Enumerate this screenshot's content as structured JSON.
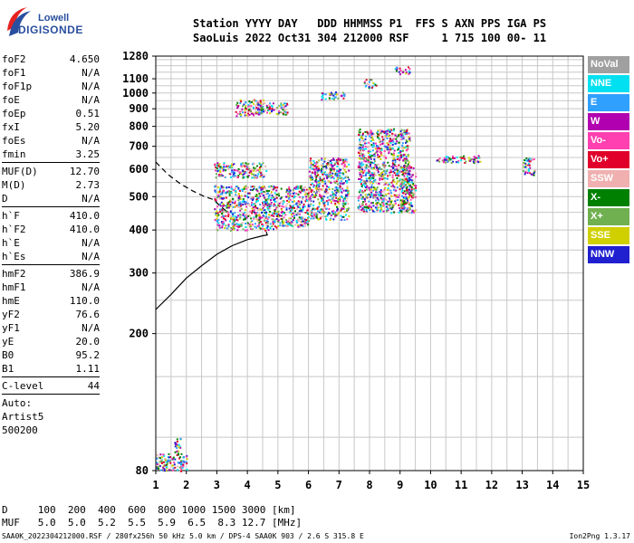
{
  "logo": {
    "line1": "Lowell",
    "line2": "DIGISONDE"
  },
  "header": {
    "row1": "Station YYYY DAY   DDD HHMMSS P1  FFS S AXN PPS IGA PS",
    "row2": "SaoLuis 2022 Oct31 304 212000 RSF     1 715 100 00- 11"
  },
  "params": {
    "group1": [
      {
        "label": "foF2",
        "value": "4.650"
      },
      {
        "label": "foF1",
        "value": "N/A"
      },
      {
        "label": "foF1p",
        "value": "N/A"
      },
      {
        "label": "foE",
        "value": "N/A"
      },
      {
        "label": "foEp",
        "value": "0.51"
      },
      {
        "label": "fxI",
        "value": "5.20"
      },
      {
        "label": "foEs",
        "value": "N/A"
      },
      {
        "label": "fmin",
        "value": "3.25"
      }
    ],
    "group2": [
      {
        "label": "MUF(D)",
        "value": "12.70"
      },
      {
        "label": "M(D)",
        "value": "2.73"
      },
      {
        "label": "D",
        "value": "N/A"
      }
    ],
    "group3": [
      {
        "label": "h`F",
        "value": "410.0"
      },
      {
        "label": "h`F2",
        "value": "410.0"
      },
      {
        "label": "h`E",
        "value": "N/A"
      },
      {
        "label": "h`Es",
        "value": "N/A"
      }
    ],
    "group4": [
      {
        "label": "hmF2",
        "value": "386.9"
      },
      {
        "label": "hmF1",
        "value": "N/A"
      },
      {
        "label": "hmE",
        "value": "110.0"
      },
      {
        "label": "yF2",
        "value": "76.6"
      },
      {
        "label": "yF1",
        "value": "N/A"
      },
      {
        "label": "yE",
        "value": "20.0"
      },
      {
        "label": "B0",
        "value": "95.2"
      },
      {
        "label": "B1",
        "value": "1.11"
      }
    ],
    "group5": [
      {
        "label": "C-level",
        "value": "44"
      }
    ],
    "auto": [
      "Auto:",
      "Artist5",
      "500200"
    ]
  },
  "legend": [
    {
      "label": "NoVal",
      "color": "#a0a0a0"
    },
    {
      "label": "NNE",
      "color": "#00e0f0"
    },
    {
      "label": "E",
      "color": "#30a0ff"
    },
    {
      "label": "W",
      "color": "#b000b0"
    },
    {
      "label": "Vo-",
      "color": "#ff40b0"
    },
    {
      "label": "Vo+",
      "color": "#e0002a"
    },
    {
      "label": "SSW",
      "color": "#f0b0b0"
    },
    {
      "label": "X-",
      "color": "#008000"
    },
    {
      "label": "X+",
      "color": "#70b050"
    },
    {
      "label": "SSE",
      "color": "#d0d000"
    },
    {
      "label": "NNW",
      "color": "#2020d0"
    }
  ],
  "bottom": {
    "d_row": "D     100  200  400  600  800 1000 1500 3000 [km]",
    "muf_row": "MUF   5.0  5.0  5.2  5.5  5.9  6.5  8.3 12.7 [MHz]"
  },
  "footer": {
    "left": "SAA0K_2022304212000.RSF / 280fx256h 50 kHz 5.0 km / DPS-4 SAA0K 903 / 2.6 S 315.8 E",
    "right": "Ion2Png 1.3.17"
  },
  "chart_data": {
    "type": "scatter",
    "title": "",
    "xlabel": "",
    "ylabel": "",
    "xlim": [
      1,
      15
    ],
    "ylim": [
      80,
      1280
    ],
    "y_scale": "log",
    "x_ticks": [
      1,
      2,
      3,
      4,
      5,
      6,
      7,
      8,
      9,
      10,
      11,
      12,
      13,
      14,
      15
    ],
    "y_ticks": [
      80,
      200,
      300,
      400,
      500,
      600,
      700,
      800,
      900,
      1000,
      1100,
      1280
    ],
    "grid": true,
    "traces": [
      {
        "name": "",
        "style": "solid",
        "points": [
          [
            1.0,
            235
          ],
          [
            1.5,
            260
          ],
          [
            2.0,
            290
          ],
          [
            2.5,
            315
          ],
          [
            3.0,
            340
          ],
          [
            3.5,
            360
          ],
          [
            4.0,
            375
          ],
          [
            4.5,
            385
          ],
          [
            4.65,
            387
          ],
          [
            4.62,
            395
          ]
        ]
      },
      {
        "name": "",
        "style": "dashed",
        "points": [
          [
            1.0,
            630
          ],
          [
            1.4,
            580
          ],
          [
            1.8,
            545
          ],
          [
            2.2,
            520
          ],
          [
            2.6,
            500
          ],
          [
            2.9,
            490
          ],
          [
            3.1,
            470
          ],
          [
            3.3,
            455
          ]
        ]
      }
    ],
    "echo_regions": [
      {
        "f": [
          2.9,
          5.0
        ],
        "h": [
          400,
          540
        ]
      },
      {
        "f": [
          2.9,
          4.6
        ],
        "h": [
          570,
          630
        ]
      },
      {
        "f": [
          5.0,
          6.0
        ],
        "h": [
          410,
          540
        ]
      },
      {
        "f": [
          6.0,
          7.3
        ],
        "h": [
          430,
          650
        ]
      },
      {
        "f": [
          7.6,
          9.3
        ],
        "h": [
          450,
          790
        ]
      },
      {
        "f": [
          9.0,
          9.5
        ],
        "h": [
          450,
          620
        ]
      },
      {
        "f": [
          10.1,
          11.6
        ],
        "h": [
          630,
          660
        ]
      },
      {
        "f": [
          13.0,
          13.4
        ],
        "h": [
          580,
          650
        ]
      },
      {
        "f": [
          3.6,
          4.5
        ],
        "h": [
          860,
          960
        ]
      },
      {
        "f": [
          4.3,
          5.3
        ],
        "h": [
          870,
          940
        ]
      },
      {
        "f": [
          6.4,
          7.2
        ],
        "h": [
          960,
          1010
        ]
      },
      {
        "f": [
          7.8,
          8.2
        ],
        "h": [
          1040,
          1100
        ]
      },
      {
        "f": [
          8.8,
          9.3
        ],
        "h": [
          1140,
          1200
        ]
      },
      {
        "f": [
          1.0,
          2.0
        ],
        "h": [
          80,
          90
        ]
      },
      {
        "f": [
          1.6,
          1.8
        ],
        "h": [
          90,
          100
        ]
      }
    ]
  }
}
